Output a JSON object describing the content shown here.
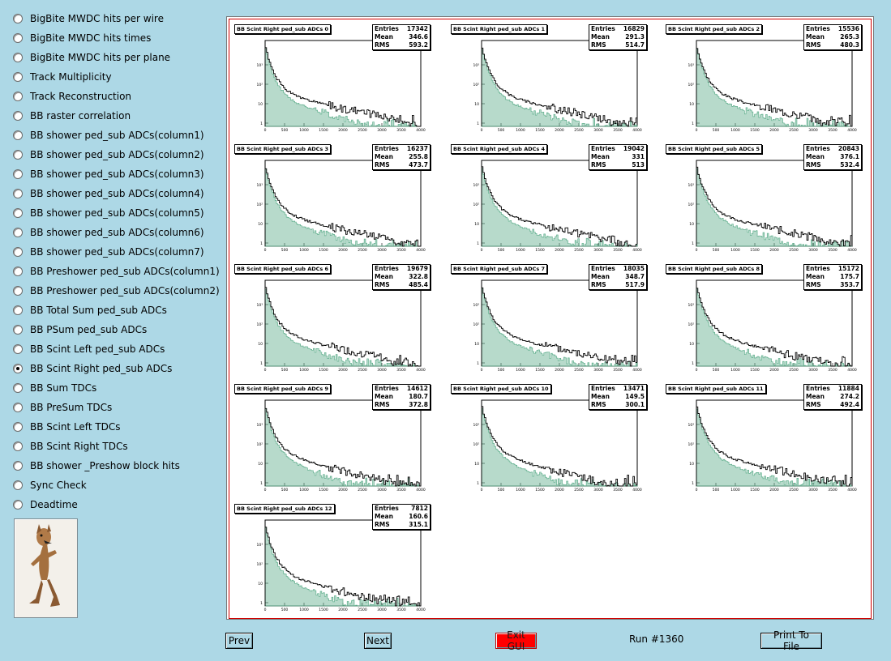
{
  "sidebar": {
    "items": [
      {
        "label": "BigBite MWDC hits per wire",
        "selected": false
      },
      {
        "label": "BigBite MWDC hits times",
        "selected": false
      },
      {
        "label": "BigBite MWDC hits per plane",
        "selected": false
      },
      {
        "label": "Track Multiplicity",
        "selected": false
      },
      {
        "label": "Track Reconstruction",
        "selected": false
      },
      {
        "label": "BB raster correlation",
        "selected": false
      },
      {
        "label": "BB shower ped_sub ADCs(column1)",
        "selected": false
      },
      {
        "label": "BB shower ped_sub ADCs(column2)",
        "selected": false
      },
      {
        "label": "BB shower ped_sub ADCs(column3)",
        "selected": false
      },
      {
        "label": "BB shower ped_sub ADCs(column4)",
        "selected": false
      },
      {
        "label": "BB shower ped_sub ADCs(column5)",
        "selected": false
      },
      {
        "label": "BB shower ped_sub ADCs(column6)",
        "selected": false
      },
      {
        "label": "BB shower ped_sub ADCs(column7)",
        "selected": false
      },
      {
        "label": "BB Preshower ped_sub ADCs(column1)",
        "selected": false
      },
      {
        "label": "BB Preshower ped_sub ADCs(column2)",
        "selected": false
      },
      {
        "label": "BB Total Sum ped_sub ADCs",
        "selected": false
      },
      {
        "label": "BB PSum ped_sub ADCs",
        "selected": false
      },
      {
        "label": "BB Scint Left ped_sub ADCs",
        "selected": false
      },
      {
        "label": "BB Scint Right ped_sub ADCs",
        "selected": true
      },
      {
        "label": "BB Sum TDCs",
        "selected": false
      },
      {
        "label": "BB PreSum TDCs",
        "selected": false
      },
      {
        "label": "BB Scint Left TDCs",
        "selected": false
      },
      {
        "label": "BB Scint Right TDCs",
        "selected": false
      },
      {
        "label": "BB shower _Preshow block hits",
        "selected": false
      },
      {
        "label": "Sync Check",
        "selected": false
      },
      {
        "label": "Deadtime",
        "selected": false
      }
    ],
    "logo_icon": "coyote-logo-icon"
  },
  "stat_labels": {
    "entries": "Entries",
    "mean": "Mean",
    "rms": "RMS"
  },
  "histograms": [
    {
      "title": "BB Scint Right ped_sub ADCs 0",
      "entries": "17342",
      "mean": "346.6",
      "rms": "593.2"
    },
    {
      "title": "BB Scint Right ped_sub ADCs 1",
      "entries": "16829",
      "mean": "291.3",
      "rms": "514.7"
    },
    {
      "title": "BB Scint Right ped_sub ADCs 2",
      "entries": "15536",
      "mean": "265.3",
      "rms": "480.3"
    },
    {
      "title": "BB Scint Right ped_sub ADCs 3",
      "entries": "16237",
      "mean": "255.8",
      "rms": "473.7"
    },
    {
      "title": "BB Scint Right ped_sub ADCs 4",
      "entries": "19042",
      "mean": "331",
      "rms": "513"
    },
    {
      "title": "BB Scint Right ped_sub ADCs 5",
      "entries": "20843",
      "mean": "376.1",
      "rms": "532.4"
    },
    {
      "title": "BB Scint Right ped_sub ADCs 6",
      "entries": "19679",
      "mean": "322.8",
      "rms": "485.4"
    },
    {
      "title": "BB Scint Right ped_sub ADCs 7",
      "entries": "18035",
      "mean": "348.7",
      "rms": "517.9"
    },
    {
      "title": "BB Scint Right ped_sub ADCs 8",
      "entries": "15172",
      "mean": "175.7",
      "rms": "353.7"
    },
    {
      "title": "BB Scint Right ped_sub ADCs 9",
      "entries": "14612",
      "mean": "180.7",
      "rms": "372.8"
    },
    {
      "title": "BB Scint Right ped_sub ADCs 10",
      "entries": "13471",
      "mean": "149.5",
      "rms": "300.1"
    },
    {
      "title": "BB Scint Right ped_sub ADCs 11",
      "entries": "11884",
      "mean": "274.2",
      "rms": "492.4"
    },
    {
      "title": "BB Scint Right ped_sub ADCs 12",
      "entries": "7812",
      "mean": "160.6",
      "rms": "315.1"
    }
  ],
  "axis": {
    "x_ticks": [
      "0",
      "500",
      "1000",
      "1500",
      "2000",
      "2500",
      "3000",
      "3500",
      "4000"
    ],
    "y_ticks": [
      "1",
      "10",
      "10²",
      "10³"
    ]
  },
  "colors": {
    "canvas_border": "#d00000",
    "line_hist": "#000000",
    "fill_hist": "#5fae8c",
    "exit_button": "#ff0000"
  },
  "buttons": {
    "prev": "Prev",
    "next": "Next",
    "exit": "Exit GUI",
    "print": "Print To File"
  },
  "run_label": "Run #1360"
}
